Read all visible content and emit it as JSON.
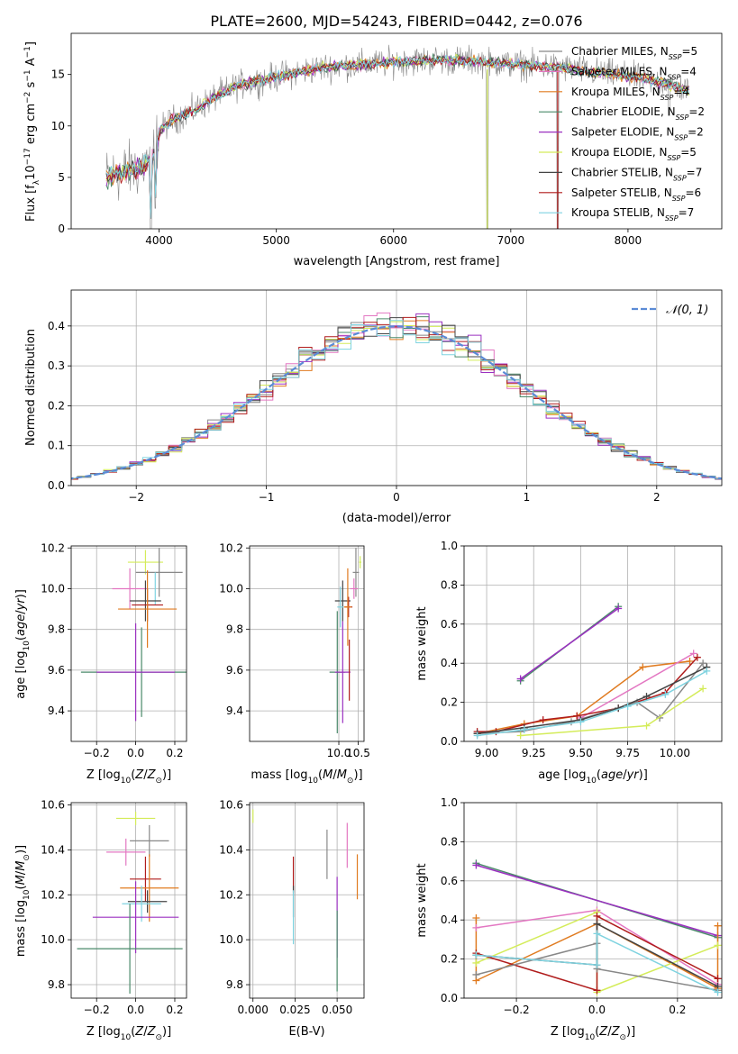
{
  "figure_title": "PLATE=2600, MJD=54243, FIBERID=0442, z=0.076",
  "colors": {
    "chabrier_miles": "#888888",
    "salpeter_miles": "#e377c2",
    "kroupa_miles": "#e07b20",
    "chabrier_elodie": "#4a8a6a",
    "salpeter_elodie": "#9b30c0",
    "kroupa_elodie": "#d4ec5a",
    "chabrier_stelib": "#444444",
    "salpeter_stelib": "#b01c1c",
    "kroupa_stelib": "#7fd3e0",
    "normal": "#5b8bd6",
    "grid": "#b0b0b0"
  },
  "chart_data": [
    {
      "id": "spectrum",
      "type": "line",
      "xlabel": "wavelength [Angstrom, rest frame]",
      "ylabel": "Flux [f_λ10^-17 erg cm^-2 s^-1 A^-1]",
      "xlim": [
        3250,
        8800
      ],
      "ylim": [
        0,
        19
      ],
      "xticks": [
        4000,
        5000,
        6000,
        7000,
        8000
      ],
      "yticks": [
        0,
        5,
        10,
        15
      ],
      "grid": false,
      "legend_position": "right",
      "continuum": {
        "x": [
          3550,
          3700,
          3850,
          3950,
          4000,
          4100,
          4300,
          4500,
          4700,
          4900,
          5100,
          5300,
          5500,
          5800,
          6100,
          6400,
          6700,
          7000,
          7300,
          7500,
          7700,
          7900,
          8100,
          8300,
          8500
        ],
        "y": [
          5.0,
          5.5,
          6.0,
          7.0,
          9.5,
          10.5,
          11.5,
          13.0,
          14.0,
          14.5,
          15.0,
          15.5,
          15.8,
          16.0,
          16.3,
          16.4,
          16.3,
          16.0,
          15.8,
          15.6,
          15.2,
          15.0,
          14.6,
          14.2,
          13.5
        ]
      },
      "features": [
        {
          "x": 3930,
          "y": 0
        },
        {
          "x": 3968,
          "y": 2
        },
        {
          "x": 6800,
          "y": 0
        },
        {
          "x": 7400,
          "y": 0
        },
        {
          "x": 8350,
          "y": 11
        }
      ],
      "series": [
        {
          "name": "Chabrier MILES, N_SSP=5",
          "sub": "SSP",
          "label_pre": "Chabrier MILES, N",
          "label_post": "=5"
        },
        {
          "name": "Salpeter MILES, N_SSP=4",
          "sub": "SSP",
          "label_pre": "Salpeter MILES, N",
          "label_post": "=4"
        },
        {
          "name": "Kroupa MILES, N_SSP=4",
          "sub": "SSP",
          "label_pre": "Kroupa MILES, N",
          "label_post": "=4"
        },
        {
          "name": "Chabrier ELODIE, N_SSP=2",
          "sub": "SSP",
          "label_pre": "Chabrier ELODIE, N",
          "label_post": "=2"
        },
        {
          "name": "Salpeter ELODIE, N_SSP=2",
          "sub": "SSP",
          "label_pre": "Salpeter ELODIE, N",
          "label_post": "=2"
        },
        {
          "name": "Kroupa ELODIE, N_SSP=5",
          "sub": "SSP",
          "label_pre": "Kroupa ELODIE, N",
          "label_post": "=5"
        },
        {
          "name": "Chabrier STELIB, N_SSP=7",
          "sub": "SSP",
          "label_pre": "Chabrier STELIB, N",
          "label_post": "=7"
        },
        {
          "name": "Salpeter STELIB, N_SSP=6",
          "sub": "SSP",
          "label_pre": "Salpeter STELIB, N",
          "label_post": "=6"
        },
        {
          "name": "Kroupa STELIB, N_SSP=7",
          "sub": "SSP",
          "label_pre": "Kroupa STELIB, N",
          "label_post": "=7"
        }
      ]
    },
    {
      "id": "residuals",
      "type": "line",
      "xlabel": "(data-model)/error",
      "ylabel": "Normed distribution",
      "xlim": [
        -2.5,
        2.5
      ],
      "ylim": [
        0,
        0.49
      ],
      "xticks": [
        -2,
        -1,
        0,
        1,
        2
      ],
      "yticks": [
        0.0,
        0.1,
        0.2,
        0.3,
        0.4
      ],
      "grid": true,
      "legend": "N(0,1)",
      "legend_position": "top-right",
      "bin_width": 0.1
    },
    {
      "id": "age_vs_Z",
      "type": "scatter",
      "xlabel": "Z [log10(Z/Z⊙)]",
      "ylabel": "age [log10(age/yr)]",
      "xlim": [
        -0.33,
        0.26
      ],
      "ylim": [
        9.25,
        10.21
      ],
      "xticks": [
        -0.2,
        0.0,
        0.2
      ],
      "yticks": [
        9.4,
        9.6,
        9.8,
        10.0,
        10.2
      ],
      "grid": true,
      "points": [
        {
          "x": 0.05,
          "y": 10.13,
          "xerr": 0.09,
          "yerr": 0.06,
          "series": 5
        },
        {
          "x": 0.12,
          "y": 10.08,
          "xerr": 0.12,
          "yerr": 0.12,
          "series": 0
        },
        {
          "x": -0.03,
          "y": 10.0,
          "xerr": 0.09,
          "yerr": 0.1,
          "series": 1
        },
        {
          "x": 0.1,
          "y": 10.0,
          "xerr": 0.0,
          "yerr": 0.08,
          "series": 8
        },
        {
          "x": 0.05,
          "y": 9.94,
          "xerr": 0.08,
          "yerr": 0.1,
          "series": 6
        },
        {
          "x": 0.06,
          "y": 9.92,
          "xerr": 0.08,
          "yerr": 0.08,
          "series": 7
        },
        {
          "x": 0.06,
          "y": 9.9,
          "xerr": 0.15,
          "yerr": 0.19,
          "series": 2
        },
        {
          "x": 0.03,
          "y": 9.59,
          "xerr": 0.31,
          "yerr": 0.22,
          "series": 3
        },
        {
          "x": 0.0,
          "y": 9.59,
          "xerr": 0.2,
          "yerr": 0.24,
          "series": 4
        }
      ]
    },
    {
      "id": "age_vs_mass",
      "type": "scatter",
      "xlabel": "mass [log10(M/M⊙)]",
      "ylabel": "",
      "xlim": [
        7.7,
        10.65
      ],
      "ylim": [
        9.25,
        10.21
      ],
      "xticks": [
        10.0,
        10.5
      ],
      "yticks": [
        9.4,
        9.6,
        9.8,
        10.0,
        10.2
      ],
      "grid": true,
      "points": [
        {
          "x": 10.55,
          "y": 10.13,
          "xerr": 0.03,
          "yerr": 0.03,
          "series": 5
        },
        {
          "x": 10.44,
          "y": 10.08,
          "xerr": 0.08,
          "yerr": 0.12,
          "series": 0
        },
        {
          "x": 10.39,
          "y": 10.0,
          "xerr": 0.1,
          "yerr": 0.05,
          "series": 1
        },
        {
          "x": 10.1,
          "y": 9.94,
          "xerr": 0.2,
          "yerr": 0.1,
          "series": 6
        },
        {
          "x": 10.25,
          "y": 9.91,
          "xerr": 0.1,
          "yerr": 0.05,
          "series": 7
        },
        {
          "x": 10.23,
          "y": 9.91,
          "xerr": 0.1,
          "yerr": 0.19,
          "series": 2
        },
        {
          "x": 10.04,
          "y": 9.91,
          "xerr": 0.08,
          "yerr": 0.1,
          "series": 8
        },
        {
          "x": 9.96,
          "y": 9.59,
          "xerr": 0.2,
          "yerr": 0.3,
          "series": 3
        },
        {
          "x": 10.1,
          "y": 9.59,
          "xerr": 0.2,
          "yerr": 0.25,
          "series": 4
        },
        {
          "x": 10.27,
          "y": 9.6,
          "xerr": 0.0,
          "yerr": 0.15,
          "series": 7
        }
      ]
    },
    {
      "id": "mass_weight_vs_age",
      "type": "line",
      "xlabel": "age [log10(age/yr)]",
      "ylabel": "mass weight",
      "xlim": [
        8.88,
        10.25
      ],
      "ylim": [
        0,
        1.0
      ],
      "xticks": [
        9.0,
        9.25,
        9.5,
        9.75,
        10.0
      ],
      "yticks": [
        0.0,
        0.2,
        0.4,
        0.6,
        0.8,
        1.0
      ],
      "grid": true,
      "series": [
        {
          "series": 3,
          "x": [
            9.18,
            9.7
          ],
          "y": [
            0.31,
            0.69
          ]
        },
        {
          "series": 4,
          "x": [
            9.18,
            9.7
          ],
          "y": [
            0.32,
            0.68
          ]
        },
        {
          "series": 2,
          "x": [
            8.95,
            9.2,
            9.48,
            9.83,
            10.08
          ],
          "y": [
            0.04,
            0.09,
            0.13,
            0.38,
            0.41
          ]
        },
        {
          "series": 1,
          "x": [
            9.5,
            10.1
          ],
          "y": [
            0.12,
            0.45
          ]
        },
        {
          "series": 7,
          "x": [
            8.95,
            9.05,
            9.3,
            9.48,
            9.7,
            9.95,
            10.12
          ],
          "y": [
            0.05,
            0.05,
            0.11,
            0.13,
            0.17,
            0.25,
            0.43
          ]
        },
        {
          "series": 0,
          "x": [
            8.95,
            9.18,
            9.45,
            9.8,
            9.92,
            10.15
          ],
          "y": [
            0.04,
            0.05,
            0.1,
            0.2,
            0.12,
            0.4
          ]
        },
        {
          "series": 5,
          "x": [
            9.18,
            9.85,
            10.15
          ],
          "y": [
            0.03,
            0.08,
            0.27
          ]
        },
        {
          "series": 6,
          "x": [
            8.95,
            9.2,
            9.5,
            9.7,
            9.85,
            10.17
          ],
          "y": [
            0.04,
            0.07,
            0.11,
            0.17,
            0.23,
            0.38
          ]
        },
        {
          "series": 8,
          "x": [
            8.95,
            9.2,
            9.5,
            9.75,
            9.95,
            10.17
          ],
          "y": [
            0.03,
            0.06,
            0.1,
            0.18,
            0.24,
            0.36
          ]
        }
      ]
    },
    {
      "id": "mass_vs_Z",
      "type": "scatter",
      "xlabel": "Z [log10(Z/Z⊙)]",
      "ylabel": "mass [log10(M/M⊙)]",
      "xlim": [
        -0.33,
        0.26
      ],
      "ylim": [
        9.74,
        10.61
      ],
      "xticks": [
        -0.2,
        0.0,
        0.2
      ],
      "yticks": [
        9.8,
        10.0,
        10.2,
        10.4,
        10.6
      ],
      "grid": true,
      "points": [
        {
          "x": 0.0,
          "y": 10.54,
          "xerr": 0.1,
          "yerr": 0.03,
          "series": 5
        },
        {
          "x": 0.07,
          "y": 10.44,
          "xerr": 0.1,
          "yerr": 0.07,
          "series": 0
        },
        {
          "x": -0.05,
          "y": 10.39,
          "xerr": 0.1,
          "yerr": 0.06,
          "series": 1
        },
        {
          "x": 0.05,
          "y": 10.27,
          "xerr": 0.08,
          "yerr": 0.1,
          "series": 7
        },
        {
          "x": 0.07,
          "y": 10.23,
          "xerr": 0.15,
          "yerr": 0.15,
          "series": 2
        },
        {
          "x": 0.06,
          "y": 10.17,
          "xerr": 0.1,
          "yerr": 0.05,
          "series": 6
        },
        {
          "x": 0.03,
          "y": 10.16,
          "xerr": 0.1,
          "yerr": 0.08,
          "series": 8
        },
        {
          "x": 0.0,
          "y": 10.1,
          "xerr": 0.22,
          "yerr": 0.16,
          "series": 4
        },
        {
          "x": -0.03,
          "y": 9.96,
          "xerr": 0.27,
          "yerr": 0.2,
          "series": 3
        }
      ]
    },
    {
      "id": "mass_vs_EBV",
      "type": "scatter",
      "xlabel": "E(B-V)",
      "ylabel": "",
      "xlim": [
        -0.002,
        0.066
      ],
      "ylim": [
        9.74,
        10.61
      ],
      "xticks": [
        0.0,
        0.025,
        0.05
      ],
      "xtick_labels": [
        "0.000",
        "0.025",
        "0.050"
      ],
      "yticks": [
        9.8,
        10.0,
        10.2,
        10.4,
        10.6
      ],
      "grid": true,
      "points": [
        {
          "x": 0.0,
          "y": 10.55,
          "xerr": 0.0,
          "yerr": 0.03,
          "series": 5
        },
        {
          "x": 0.044,
          "y": 10.38,
          "xerr": 0.0,
          "yerr": 0.11,
          "series": 0
        },
        {
          "x": 0.056,
          "y": 10.42,
          "xerr": 0.0,
          "yerr": 0.1,
          "series": 1
        },
        {
          "x": 0.062,
          "y": 10.28,
          "xerr": 0.0,
          "yerr": 0.1,
          "series": 2
        },
        {
          "x": 0.024,
          "y": 10.29,
          "xerr": 0.0,
          "yerr": 0.08,
          "series": 7
        },
        {
          "x": 0.024,
          "y": 10.17,
          "xerr": 0.0,
          "yerr": 0.07,
          "series": 6
        },
        {
          "x": 0.024,
          "y": 10.1,
          "xerr": 0.0,
          "yerr": 0.12,
          "series": 8
        },
        {
          "x": 0.05,
          "y": 10.1,
          "xerr": 0.0,
          "yerr": 0.18,
          "series": 4
        },
        {
          "x": 0.05,
          "y": 9.95,
          "xerr": 0.0,
          "yerr": 0.18,
          "series": 3
        }
      ]
    },
    {
      "id": "mass_weight_vs_Z",
      "type": "line",
      "xlabel": "Z [log10(Z/Z⊙)]",
      "ylabel": "mass weight",
      "xlim": [
        -0.33,
        0.31
      ],
      "ylim": [
        0,
        1.0
      ],
      "xticks": [
        -0.2,
        0.0,
        0.2
      ],
      "yticks": [
        0.0,
        0.2,
        0.4,
        0.6,
        0.8,
        1.0
      ],
      "grid": true,
      "series": [
        {
          "series": 3,
          "x": [
            -0.3,
            0.3
          ],
          "y": [
            0.69,
            0.31
          ]
        },
        {
          "series": 4,
          "x": [
            -0.3,
            0.3
          ],
          "y": [
            0.68,
            0.32
          ]
        },
        {
          "series": 2,
          "x": [
            -0.3,
            -0.3,
            0.0,
            0.3,
            0.3
          ],
          "y": [
            0.41,
            0.09,
            0.38,
            0.05,
            0.37
          ]
        },
        {
          "series": 1,
          "x": [
            -0.3,
            0.0,
            0.3
          ],
          "y": [
            0.36,
            0.45,
            0.07
          ]
        },
        {
          "series": 5,
          "x": [
            -0.3,
            0.0,
            0.0,
            0.3
          ],
          "y": [
            0.18,
            0.44,
            0.03,
            0.27
          ]
        },
        {
          "series": 7,
          "x": [
            -0.3,
            0.0,
            0.0,
            0.3
          ],
          "y": [
            0.23,
            0.04,
            0.42,
            0.1
          ]
        },
        {
          "series": 0,
          "x": [
            -0.3,
            0.0,
            0.0,
            0.3
          ],
          "y": [
            0.12,
            0.28,
            0.15,
            0.04
          ]
        },
        {
          "series": 6,
          "x": [
            -0.3,
            0.0,
            0.0,
            0.3
          ],
          "y": [
            0.22,
            0.17,
            0.38,
            0.06
          ]
        },
        {
          "series": 8,
          "x": [
            -0.3,
            0.0,
            0.0,
            0.3
          ],
          "y": [
            0.22,
            0.17,
            0.33,
            0.03
          ]
        }
      ]
    }
  ]
}
